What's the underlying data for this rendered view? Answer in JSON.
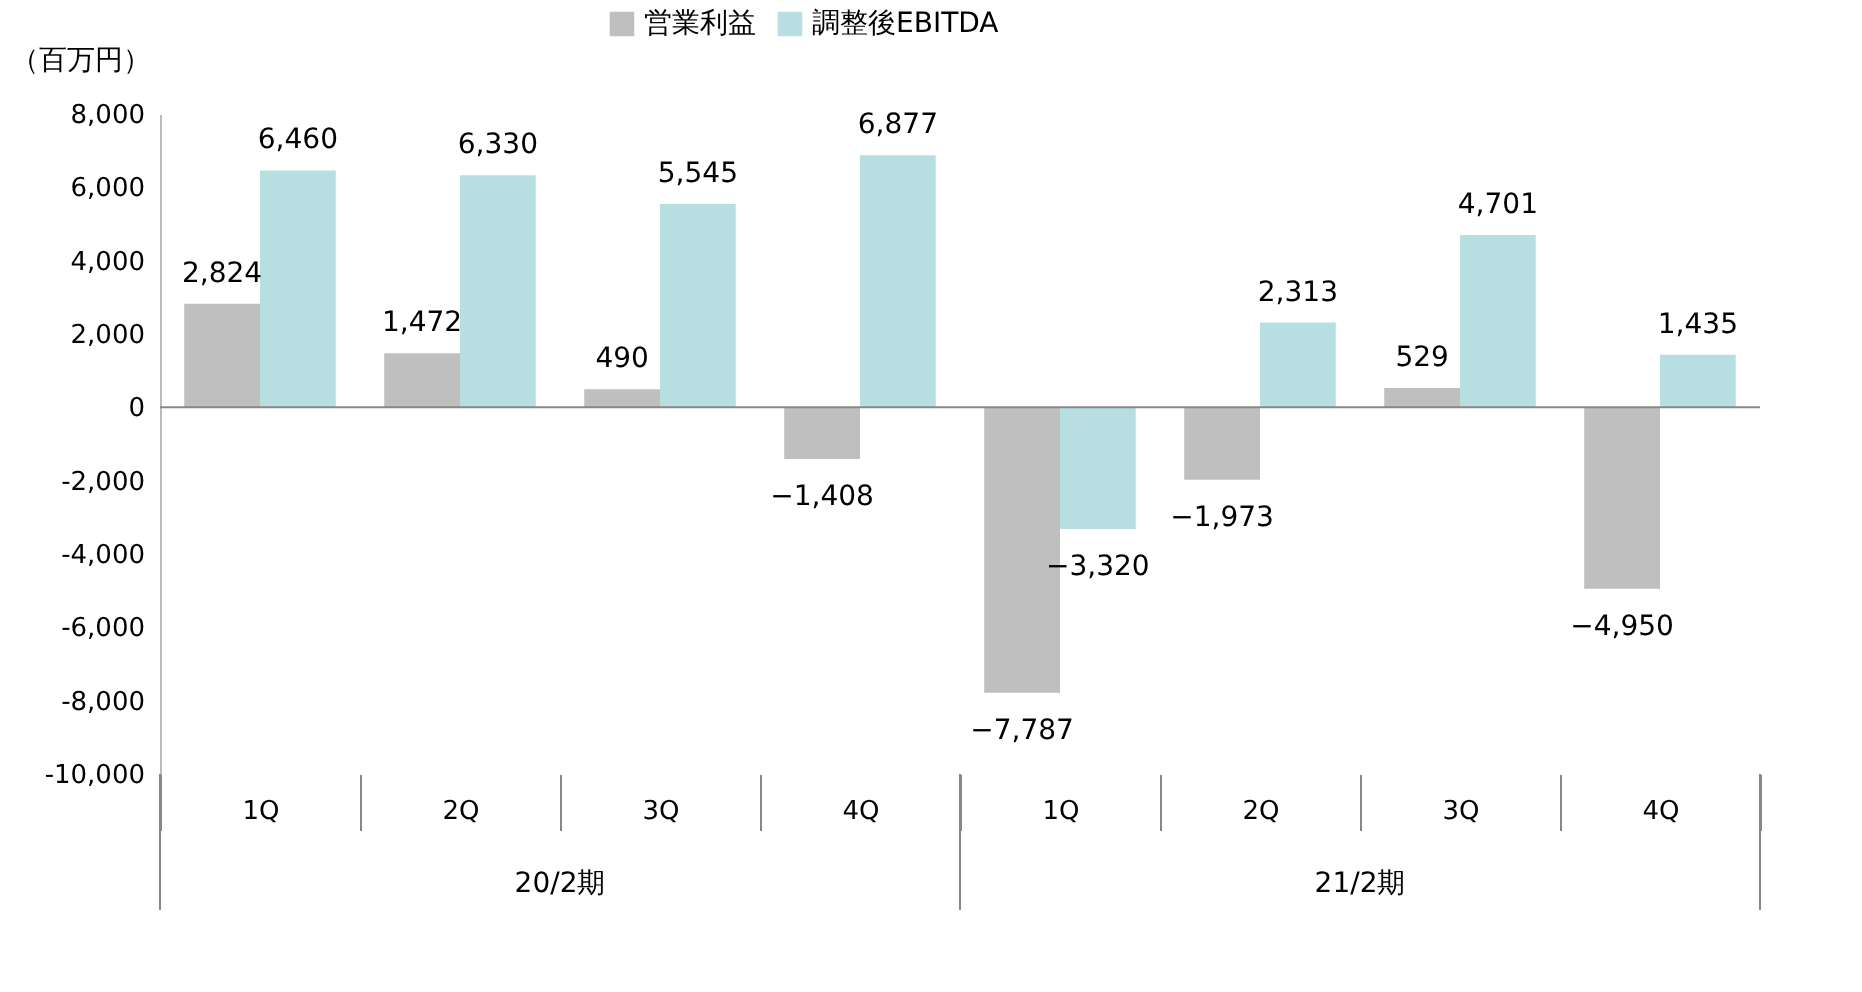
{
  "chart_data": {
    "type": "bar",
    "ylabel": "（百万円）",
    "categories": [
      "1Q",
      "2Q",
      "3Q",
      "4Q",
      "1Q",
      "2Q",
      "3Q",
      "4Q"
    ],
    "series": [
      {
        "name": "営業利益",
        "color": "#bfbfbf",
        "values": [
          2824,
          1472,
          490,
          -1408,
          -7787,
          -1973,
          529,
          -4950
        ],
        "value_labels": [
          "2,824",
          "1,472",
          "490",
          "−1,408",
          "−7,787",
          "−1,973",
          "529",
          "−4,950"
        ]
      },
      {
        "name": "調整後EBITDA",
        "color": "#b7dfe1",
        "values": [
          6460,
          6330,
          5545,
          6877,
          -3320,
          2313,
          4701,
          1435
        ],
        "value_labels": [
          "6,460",
          "6,330",
          "5,545",
          "6,877",
          "−3,320",
          "2,313",
          "4,701",
          "1,435"
        ]
      }
    ],
    "ylim": [
      -10000,
      8000
    ],
    "yticks": [
      {
        "value": -10000,
        "label": "-10,000"
      },
      {
        "value": -8000,
        "label": "-8,000"
      },
      {
        "value": -6000,
        "label": "-6,000"
      },
      {
        "value": -4000,
        "label": "-4,000"
      },
      {
        "value": -2000,
        "label": "-2,000"
      },
      {
        "value": 0,
        "label": "0"
      },
      {
        "value": 2000,
        "label": "2,000"
      },
      {
        "value": 4000,
        "label": "4,000"
      },
      {
        "value": 6000,
        "label": "6,000"
      },
      {
        "value": 8000,
        "label": "8,000"
      }
    ],
    "annotations": [
      "20/2期",
      "21/2期"
    ],
    "legend": "top"
  }
}
